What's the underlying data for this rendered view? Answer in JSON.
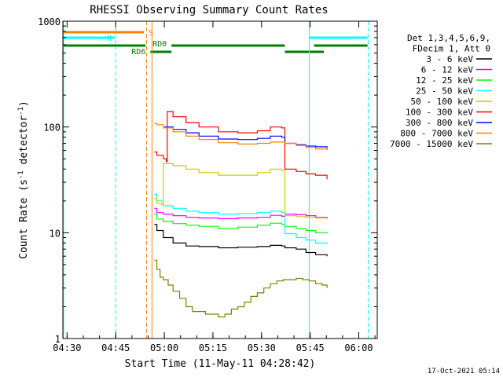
{
  "chart_data": {
    "type": "line",
    "title": "RHESSI Observing Summary Count Rates",
    "xlabel": "Start Time (11-May-11 04:28:42)",
    "ylabel_parts": [
      "Count Rate (s",
      "-1",
      " detector",
      "-1",
      ")"
    ],
    "x_unit": "minutes since 04:28:42",
    "xlim": [
      0,
      97
    ],
    "ylim": [
      1,
      1000
    ],
    "yscale": "log",
    "x_ticks": [
      {
        "label": "04:30",
        "value": 1.3
      },
      {
        "label": "04:45",
        "value": 16.3
      },
      {
        "label": "05:00",
        "value": 31.3
      },
      {
        "label": "05:15",
        "value": 46.3
      },
      {
        "label": "05:30",
        "value": 61.3
      },
      {
        "label": "05:45",
        "value": 76.3
      },
      {
        "label": "06:00",
        "value": 91.3
      }
    ],
    "y_ticks": [
      {
        "label": "1",
        "value": 1
      },
      {
        "label": "10",
        "value": 10
      },
      {
        "label": "100",
        "value": 100
      },
      {
        "label": "1000",
        "value": 1000
      }
    ],
    "legend_header": [
      "Det 1,3,4,5,6,9,",
      "FDecim 1, Att 0"
    ],
    "series": [
      {
        "name": "3 - 6 keV",
        "color": "#000000",
        "points": [
          [
            28.2,
            12
          ],
          [
            29,
            10.5
          ],
          [
            31,
            9
          ],
          [
            34,
            8
          ],
          [
            38,
            7.5
          ],
          [
            42,
            7.4
          ],
          [
            48,
            7.2
          ],
          [
            54,
            7.3
          ],
          [
            60,
            7.4
          ],
          [
            64,
            7.6
          ],
          [
            67.5,
            7.5
          ],
          [
            68.5,
            7.2
          ],
          [
            72,
            7
          ],
          [
            75,
            6.5
          ],
          [
            78,
            6.2
          ],
          [
            81.5,
            6
          ]
        ]
      },
      {
        "name": "6 - 12 keV",
        "color": "#ff00ff",
        "points": [
          [
            28.2,
            17
          ],
          [
            29,
            15.5
          ],
          [
            31,
            15
          ],
          [
            34,
            14.5
          ],
          [
            38,
            14
          ],
          [
            42,
            13.8
          ],
          [
            48,
            13.6
          ],
          [
            54,
            13.8
          ],
          [
            60,
            14
          ],
          [
            64,
            14.6
          ],
          [
            67.5,
            14.3
          ],
          [
            68.5,
            15
          ],
          [
            72,
            14.8
          ],
          [
            75,
            14.5
          ],
          [
            78,
            14
          ],
          [
            81.5,
            13.5
          ]
        ]
      },
      {
        "name": "12 - 25 keV",
        "color": "#00ff00",
        "points": [
          [
            28.2,
            15
          ],
          [
            29,
            13.5
          ],
          [
            31,
            12.8
          ],
          [
            34,
            12.2
          ],
          [
            38,
            11.8
          ],
          [
            42,
            11.5
          ],
          [
            48,
            11
          ],
          [
            54,
            11.3
          ],
          [
            60,
            11.8
          ],
          [
            64,
            12.3
          ],
          [
            67.5,
            12
          ],
          [
            68.5,
            11.5
          ],
          [
            72,
            11
          ],
          [
            75,
            10.5
          ],
          [
            78,
            10
          ],
          [
            81.5,
            9.8
          ]
        ]
      },
      {
        "name": "25 - 50 keV",
        "color": "#00ffff",
        "points": [
          [
            28.2,
            23
          ],
          [
            29,
            20
          ],
          [
            31,
            18
          ],
          [
            34,
            17
          ],
          [
            38,
            16
          ],
          [
            42,
            15.5
          ],
          [
            48,
            15
          ],
          [
            54,
            15.2
          ],
          [
            60,
            15.5
          ],
          [
            64,
            16
          ],
          [
            67.5,
            15.5
          ],
          [
            68.5,
            9.8
          ],
          [
            72,
            9
          ],
          [
            75,
            8.5
          ],
          [
            78,
            8
          ],
          [
            81.5,
            7.8
          ]
        ]
      },
      {
        "name": "50 - 100 keV",
        "color": "#cccc00",
        "points": [
          [
            28.2,
            21
          ],
          [
            29,
            19
          ],
          [
            30.4,
            18.5
          ],
          [
            31,
            45
          ],
          [
            34,
            43
          ],
          [
            38,
            40
          ],
          [
            42,
            37
          ],
          [
            48,
            35
          ],
          [
            54,
            35
          ],
          [
            60,
            37
          ],
          [
            64,
            40
          ],
          [
            67.5,
            39
          ],
          [
            68.5,
            14.5
          ],
          [
            72,
            14.2
          ],
          [
            75,
            14
          ],
          [
            78,
            13.8
          ],
          [
            81.5,
            13.5
          ]
        ]
      },
      {
        "name": "100 - 300 keV",
        "color": "#ff0000",
        "points": [
          [
            28.2,
            58
          ],
          [
            29,
            54
          ],
          [
            31,
            50
          ],
          [
            31.9,
            47
          ],
          [
            32.2,
            140
          ],
          [
            34,
            125
          ],
          [
            38,
            110
          ],
          [
            42,
            100
          ],
          [
            48,
            90
          ],
          [
            54,
            88
          ],
          [
            60,
            92
          ],
          [
            64,
            100
          ],
          [
            67.5,
            98
          ],
          [
            68.5,
            40
          ],
          [
            72,
            38
          ],
          [
            75,
            36
          ],
          [
            78,
            35
          ],
          [
            81.5,
            32
          ]
        ]
      },
      {
        "name": "300 - 800 keV",
        "color": "#0000ff",
        "points": [
          [
            31.3,
            100
          ],
          [
            34,
            95
          ],
          [
            38,
            88
          ],
          [
            42,
            82
          ],
          [
            48,
            77
          ],
          [
            54,
            76
          ],
          [
            60,
            78
          ],
          [
            64,
            82
          ],
          [
            67.5,
            80
          ],
          [
            68.5,
            70
          ],
          [
            72,
            68
          ],
          [
            75,
            66
          ],
          [
            78,
            65
          ],
          [
            81.5,
            63
          ]
        ]
      },
      {
        "name": "800 - 7000 keV",
        "color": "#ff8000",
        "points": [
          [
            28.2,
            108
          ],
          [
            29,
            105
          ],
          [
            31,
            98
          ],
          [
            34,
            90
          ],
          [
            38,
            82
          ],
          [
            42,
            76
          ],
          [
            48,
            71
          ],
          [
            54,
            69
          ],
          [
            60,
            70
          ],
          [
            64,
            72
          ],
          [
            67.5,
            72
          ],
          [
            68.5,
            70
          ],
          [
            72,
            67
          ],
          [
            75,
            64
          ],
          [
            78,
            62
          ],
          [
            81.5,
            60
          ]
        ]
      },
      {
        "name": "7000 - 15000 keV",
        "color": "#808000",
        "points": [
          [
            28.2,
            5.5
          ],
          [
            29,
            4.5
          ],
          [
            30,
            3.8
          ],
          [
            31,
            3.6
          ],
          [
            32.5,
            3.2
          ],
          [
            34,
            2.8
          ],
          [
            36,
            2.4
          ],
          [
            38,
            2
          ],
          [
            40,
            1.8
          ],
          [
            44,
            1.7
          ],
          [
            48,
            1.6
          ],
          [
            50,
            1.7
          ],
          [
            52,
            1.9
          ],
          [
            54,
            2
          ],
          [
            56,
            2.2
          ],
          [
            58,
            2.5
          ],
          [
            60,
            2.7
          ],
          [
            62,
            3
          ],
          [
            64,
            3.3
          ],
          [
            66,
            3.5
          ],
          [
            68,
            3.6
          ],
          [
            70,
            3.6
          ],
          [
            72,
            3.7
          ],
          [
            74,
            3.6
          ],
          [
            76,
            3.5
          ],
          [
            78,
            3.3
          ],
          [
            80,
            3.2
          ],
          [
            81.5,
            3
          ]
        ]
      }
    ],
    "flags": [
      {
        "label": "S",
        "color": "#ff8000",
        "segments": [
          [
            0,
            25
          ]
        ]
      },
      {
        "label": "N",
        "color": "#00ffff",
        "segments": [
          [
            0,
            16
          ],
          [
            76,
            94
          ]
        ]
      },
      {
        "label": "RD0",
        "color": "#008000",
        "segments": [
          [
            0,
            25.5
          ],
          [
            33.5,
            68.5
          ],
          [
            77.5,
            94
          ]
        ]
      },
      {
        "label": "RD6",
        "color": "#008000",
        "segments": [
          [
            27,
            33.5
          ],
          [
            68.5,
            80.5
          ]
        ]
      }
    ],
    "vlines": [
      {
        "x": 0.2,
        "color": "#00ffff",
        "style": "solid"
      },
      {
        "x": 16.3,
        "color": "#00ffff",
        "style": "dashed"
      },
      {
        "x": 25.8,
        "color": "#ff8000",
        "style": "dashed"
      },
      {
        "x": 27.5,
        "color": "#ff8000",
        "style": "solid"
      },
      {
        "x": 76,
        "color": "#00ffff",
        "style": "solid"
      },
      {
        "x": 94.2,
        "color": "#00ffff",
        "style": "dashed"
      }
    ],
    "timestamp": "17-Oct-2021 05:14"
  }
}
